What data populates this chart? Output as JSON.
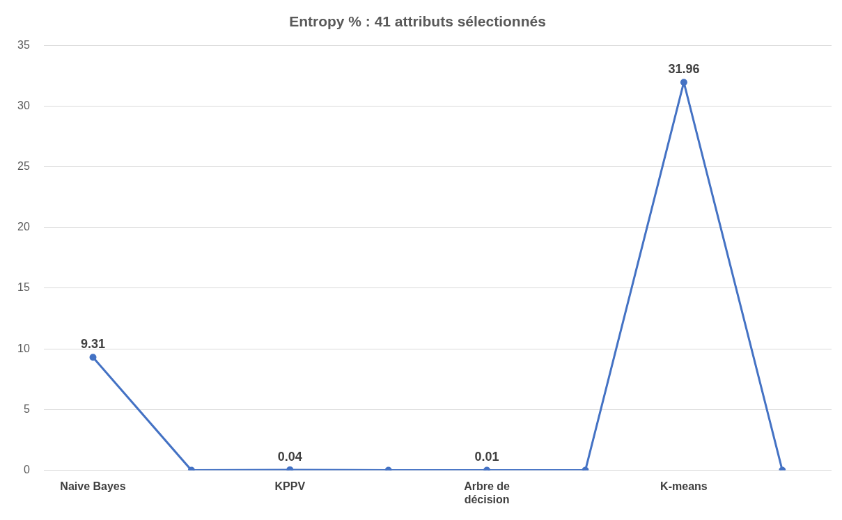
{
  "chart_data": {
    "type": "line",
    "title": "Entropy % : 41 attributs sélectionnés",
    "categories": [
      "Naive Bayes",
      null,
      "KPPV",
      null,
      "Arbre de décision",
      null,
      "K-means",
      null
    ],
    "values": [
      9.31,
      0,
      0.04,
      0,
      0.01,
      0,
      31.96,
      0
    ],
    "value_labels": [
      "9.31",
      null,
      "0.04",
      null,
      "0.01",
      null,
      "31.96",
      null
    ],
    "color": "#4472c4",
    "ylim": [
      0,
      35
    ],
    "yticks": [
      0,
      5,
      10,
      15,
      20,
      25,
      30,
      35
    ],
    "grid": "y",
    "marker": "circle",
    "line_style": "solid",
    "legend": false
  }
}
